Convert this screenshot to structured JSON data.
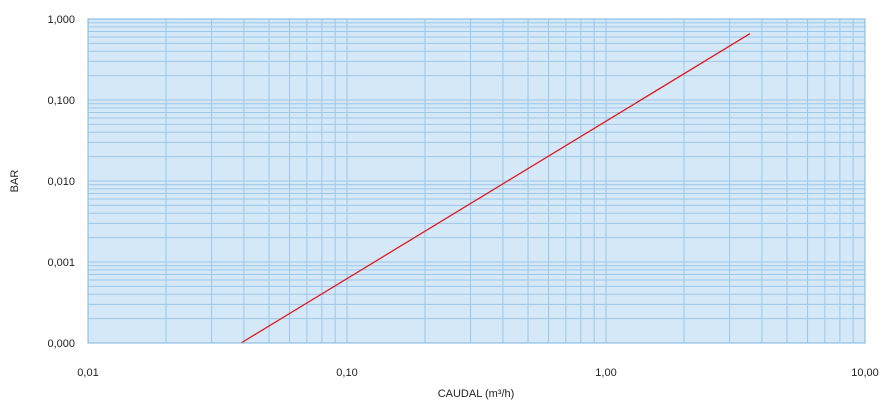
{
  "chart_data": {
    "type": "line",
    "title": "",
    "xlabel": "CAUDAL (m³/h)",
    "ylabel": "BAR",
    "x_scale": "log",
    "y_scale": "log",
    "xlim": [
      0.01,
      10
    ],
    "ylim": [
      0.0001,
      1
    ],
    "x_ticks": [
      {
        "value": 0.01,
        "label": "0,01"
      },
      {
        "value": 0.1,
        "label": "0,10"
      },
      {
        "value": 1,
        "label": "1,00"
      },
      {
        "value": 10,
        "label": "10,00"
      }
    ],
    "y_ticks": [
      {
        "value": 1,
        "label": "1,000"
      },
      {
        "value": 0.1,
        "label": "0,100"
      },
      {
        "value": 0.01,
        "label": "0,010"
      },
      {
        "value": 0.001,
        "label": "0,001"
      },
      {
        "value": 0.0001,
        "label": "0,000"
      }
    ],
    "grid": true,
    "series": [
      {
        "color": "#e0191f",
        "points": [
          {
            "x": 0.039,
            "y": 0.0001
          },
          {
            "x": 3.6,
            "y": 0.66
          }
        ]
      }
    ],
    "colors": {
      "plot_background": "#d4e8f7",
      "grid_line": "#9ec8e8",
      "axis_line": "#7fb6e0"
    }
  }
}
